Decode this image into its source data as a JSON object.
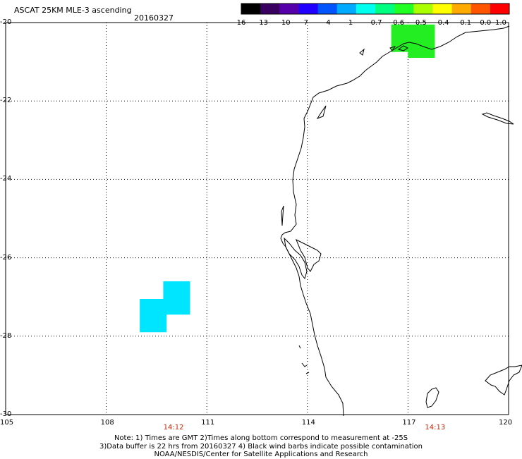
{
  "header": {
    "title": "ASCAT 25KM MLE-3 ascending",
    "date": "20160327"
  },
  "colorbar": {
    "ticks": [
      "-16",
      "-13",
      "-10",
      "-7",
      "-4",
      "-1",
      "-0.7",
      "-0.6",
      "-0.5",
      "-0.4",
      "-0.1",
      "0.0",
      "1.0"
    ],
    "colors": [
      "#000000",
      "#3a0060",
      "#5500aa",
      "#2200ff",
      "#0055ff",
      "#00aaff",
      "#00ffee",
      "#00ff80",
      "#22ff22",
      "#aaff00",
      "#ffff00",
      "#ffaa00",
      "#ff5500",
      "#ff0000"
    ]
  },
  "axes": {
    "lon_labels": [
      "105",
      "108",
      "111",
      "114",
      "117",
      "120"
    ],
    "lat_labels": [
      "-20",
      "-22",
      "-24",
      "-26",
      "-28",
      "-30"
    ],
    "lon_range": [
      105,
      120
    ],
    "lat_range": [
      -20,
      -30
    ],
    "times": [
      {
        "label": "14:12",
        "lon": 110.0
      },
      {
        "label": "14:13",
        "lon": 117.8
      }
    ]
  },
  "data_cells": [
    {
      "lon_min": 109.7,
      "lon_max": 110.5,
      "lat_top": -26.6,
      "lat_bottom": -27.45,
      "color": "#00e5ff"
    },
    {
      "lon_min": 109.0,
      "lon_max": 109.8,
      "lat_top": -27.05,
      "lat_bottom": -27.9,
      "color": "#00e5ff"
    },
    {
      "lon_min": 116.5,
      "lon_max": 117.8,
      "lat_top": -20.05,
      "lat_bottom": -20.75,
      "color": "#22ee22"
    },
    {
      "lon_min": 117.0,
      "lon_max": 117.8,
      "lat_top": -20.6,
      "lat_bottom": -20.9,
      "color": "#22ee22"
    }
  ],
  "footer": {
    "line1": "Note: 1) Times are GMT 2)Times along bottom correspond to measurement at -25S",
    "line2": "3)Data buffer is 22 hrs from 20160327 4) Black wind barbs indicate possible contamination",
    "line3": "NOAA/NESDIS/Center for Satellite Applications and Research"
  }
}
